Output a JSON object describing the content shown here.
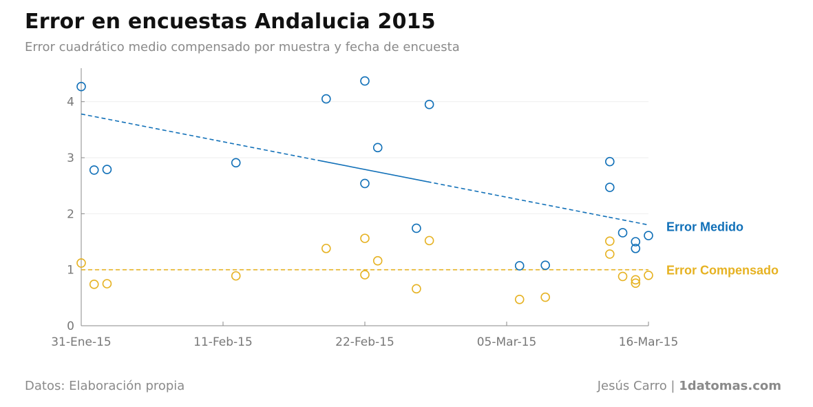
{
  "header": {
    "title": "Error en encuestas Andalucia 2015",
    "subtitle": "Error cuadrático medio compensado por muestra y fecha de encuesta"
  },
  "footer": {
    "source": "Datos: Elaboración propia",
    "author": "Jesús Carro | ",
    "site": "1datomas.com"
  },
  "colors": {
    "medido": "#1170b8",
    "compensado": "#e6b222",
    "axis": "#888888",
    "grid": "#eeeeee"
  },
  "chart_data": {
    "type": "scatter",
    "title": "Error en encuestas Andalucia 2015",
    "subtitle": "Error cuadrático medio compensado por muestra y fecha de encuesta",
    "x_ticks": [
      "31-Ene-15",
      "11-Feb-15",
      "22-Feb-15",
      "05-Mar-15",
      "16-Mar-15"
    ],
    "x_range": [
      "2015-01-31",
      "2015-03-16"
    ],
    "ylim": [
      0,
      4.5
    ],
    "y_ticks": [
      0,
      1,
      2,
      3,
      4
    ],
    "grid": true,
    "series": [
      {
        "name": "Error Medido",
        "points": [
          {
            "x": "2015-01-31",
            "y": 4.27
          },
          {
            "x": "2015-02-01",
            "y": 2.78
          },
          {
            "x": "2015-02-02",
            "y": 2.79
          },
          {
            "x": "2015-02-12",
            "y": 2.91
          },
          {
            "x": "2015-02-19",
            "y": 4.05
          },
          {
            "x": "2015-02-22",
            "y": 4.37
          },
          {
            "x": "2015-02-22",
            "y": 2.54
          },
          {
            "x": "2015-02-23",
            "y": 3.18
          },
          {
            "x": "2015-02-26",
            "y": 1.74
          },
          {
            "x": "2015-02-27",
            "y": 3.95
          },
          {
            "x": "2015-03-06",
            "y": 1.07
          },
          {
            "x": "2015-03-08",
            "y": 1.08
          },
          {
            "x": "2015-03-13",
            "y": 2.93
          },
          {
            "x": "2015-03-13",
            "y": 2.47
          },
          {
            "x": "2015-03-14",
            "y": 1.66
          },
          {
            "x": "2015-03-15",
            "y": 1.5
          },
          {
            "x": "2015-03-15",
            "y": 1.38
          },
          {
            "x": "2015-03-16",
            "y": 1.61
          }
        ],
        "trend": {
          "start": {
            "x": "2015-01-31",
            "y": 3.78
          },
          "end": {
            "x": "2015-03-16",
            "y": 1.8
          }
        }
      },
      {
        "name": "Error Compensado",
        "points": [
          {
            "x": "2015-01-31",
            "y": 1.12
          },
          {
            "x": "2015-02-01",
            "y": 0.74
          },
          {
            "x": "2015-02-02",
            "y": 0.75
          },
          {
            "x": "2015-02-12",
            "y": 0.89
          },
          {
            "x": "2015-02-19",
            "y": 1.38
          },
          {
            "x": "2015-02-22",
            "y": 1.56
          },
          {
            "x": "2015-02-22",
            "y": 0.91
          },
          {
            "x": "2015-02-23",
            "y": 1.16
          },
          {
            "x": "2015-02-26",
            "y": 0.66
          },
          {
            "x": "2015-02-27",
            "y": 1.52
          },
          {
            "x": "2015-03-06",
            "y": 0.47
          },
          {
            "x": "2015-03-08",
            "y": 0.51
          },
          {
            "x": "2015-03-13",
            "y": 1.51
          },
          {
            "x": "2015-03-13",
            "y": 1.28
          },
          {
            "x": "2015-03-14",
            "y": 0.88
          },
          {
            "x": "2015-03-15",
            "y": 0.82
          },
          {
            "x": "2015-03-15",
            "y": 0.76
          },
          {
            "x": "2015-03-16",
            "y": 0.9
          }
        ],
        "trend": {
          "start": {
            "x": "2015-01-31",
            "y": 1.0
          },
          "end": {
            "x": "2015-03-16",
            "y": 1.0
          }
        }
      }
    ]
  }
}
